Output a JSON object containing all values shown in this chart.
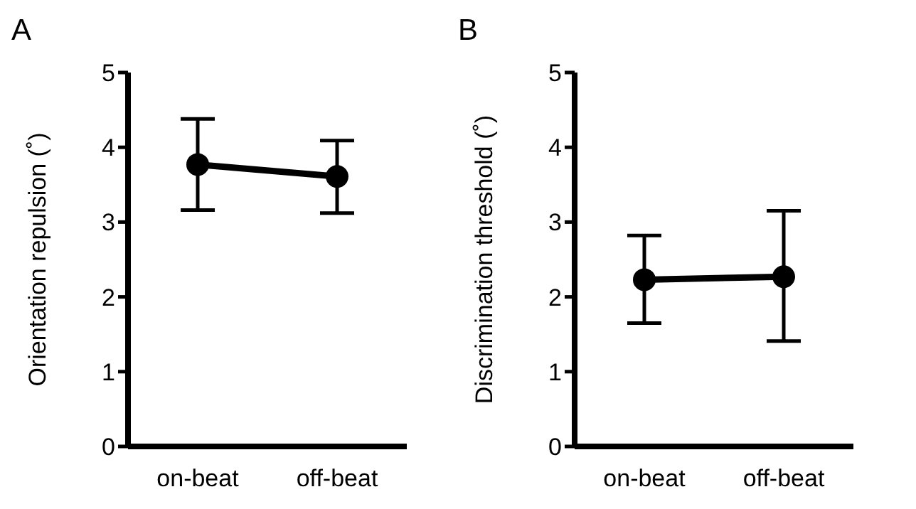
{
  "chart_data": [
    {
      "type": "line",
      "title": "A",
      "ylabel": "Orientation repulsion (˚)",
      "categories": [
        "on-beat",
        "off-beat"
      ],
      "series": [
        {
          "color": "#000000",
          "values": [
            3.77,
            3.61
          ],
          "errors": [
            [
              3.16,
              4.38
            ],
            [
              3.12,
              4.09
            ]
          ]
        }
      ],
      "ylim": [
        0,
        5
      ],
      "yticks": [
        0,
        1,
        2,
        3,
        4,
        5
      ],
      "grid": false,
      "legend": false,
      "marker": "circle",
      "line_style": "solid"
    },
    {
      "type": "line",
      "title": "B",
      "ylabel": "Discrimination threshold (˚)",
      "categories": [
        "on-beat",
        "off-beat"
      ],
      "series": [
        {
          "color": "#000000",
          "values": [
            2.23,
            2.27
          ],
          "errors": [
            [
              1.65,
              2.82
            ],
            [
              1.41,
              3.15
            ]
          ]
        }
      ],
      "ylim": [
        0,
        5
      ],
      "yticks": [
        0,
        1,
        2,
        3,
        4,
        5
      ],
      "grid": false,
      "legend": false,
      "marker": "circle",
      "line_style": "solid"
    }
  ]
}
